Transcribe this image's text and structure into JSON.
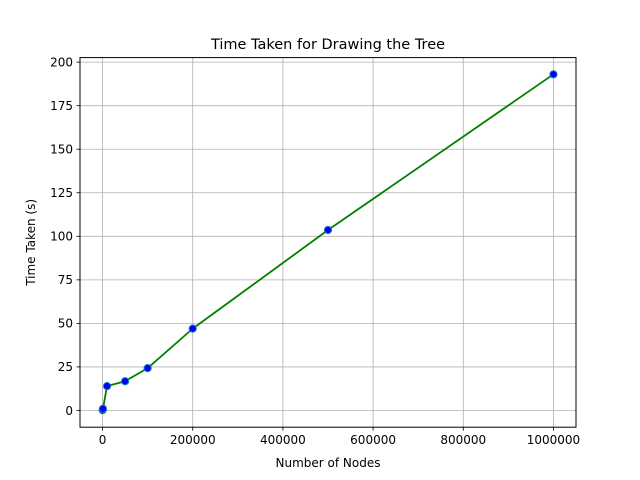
{
  "chart_data": {
    "type": "line",
    "title": "Time Taken for Drawing the Tree",
    "xlabel": "Number of Nodes",
    "ylabel": "Time Taken (s)",
    "xlim": [
      -50000,
      1050000
    ],
    "ylim": [
      -9.6,
      202.6
    ],
    "x_ticks": [
      0,
      200000,
      400000,
      600000,
      800000,
      1000000
    ],
    "x_tick_labels": [
      "0",
      "200000",
      "400000",
      "600000",
      "800000",
      "1000000"
    ],
    "y_ticks": [
      0,
      25,
      50,
      75,
      100,
      125,
      150,
      175,
      200
    ],
    "y_tick_labels": [
      "0",
      "25",
      "50",
      "75",
      "100",
      "125",
      "150",
      "175",
      "200"
    ],
    "grid": true,
    "legend": "none",
    "series": [
      {
        "x": [
          100,
          1000,
          10000,
          50000,
          100000,
          200000,
          500000,
          1000000
        ],
        "y": [
          0.2,
          1.0,
          14.0,
          16.8,
          24.3,
          47.0,
          103.6,
          193.0
        ],
        "line_color": "#008000",
        "marker_face": "#0000ff",
        "marker_edge": "#1f77b4"
      }
    ]
  }
}
